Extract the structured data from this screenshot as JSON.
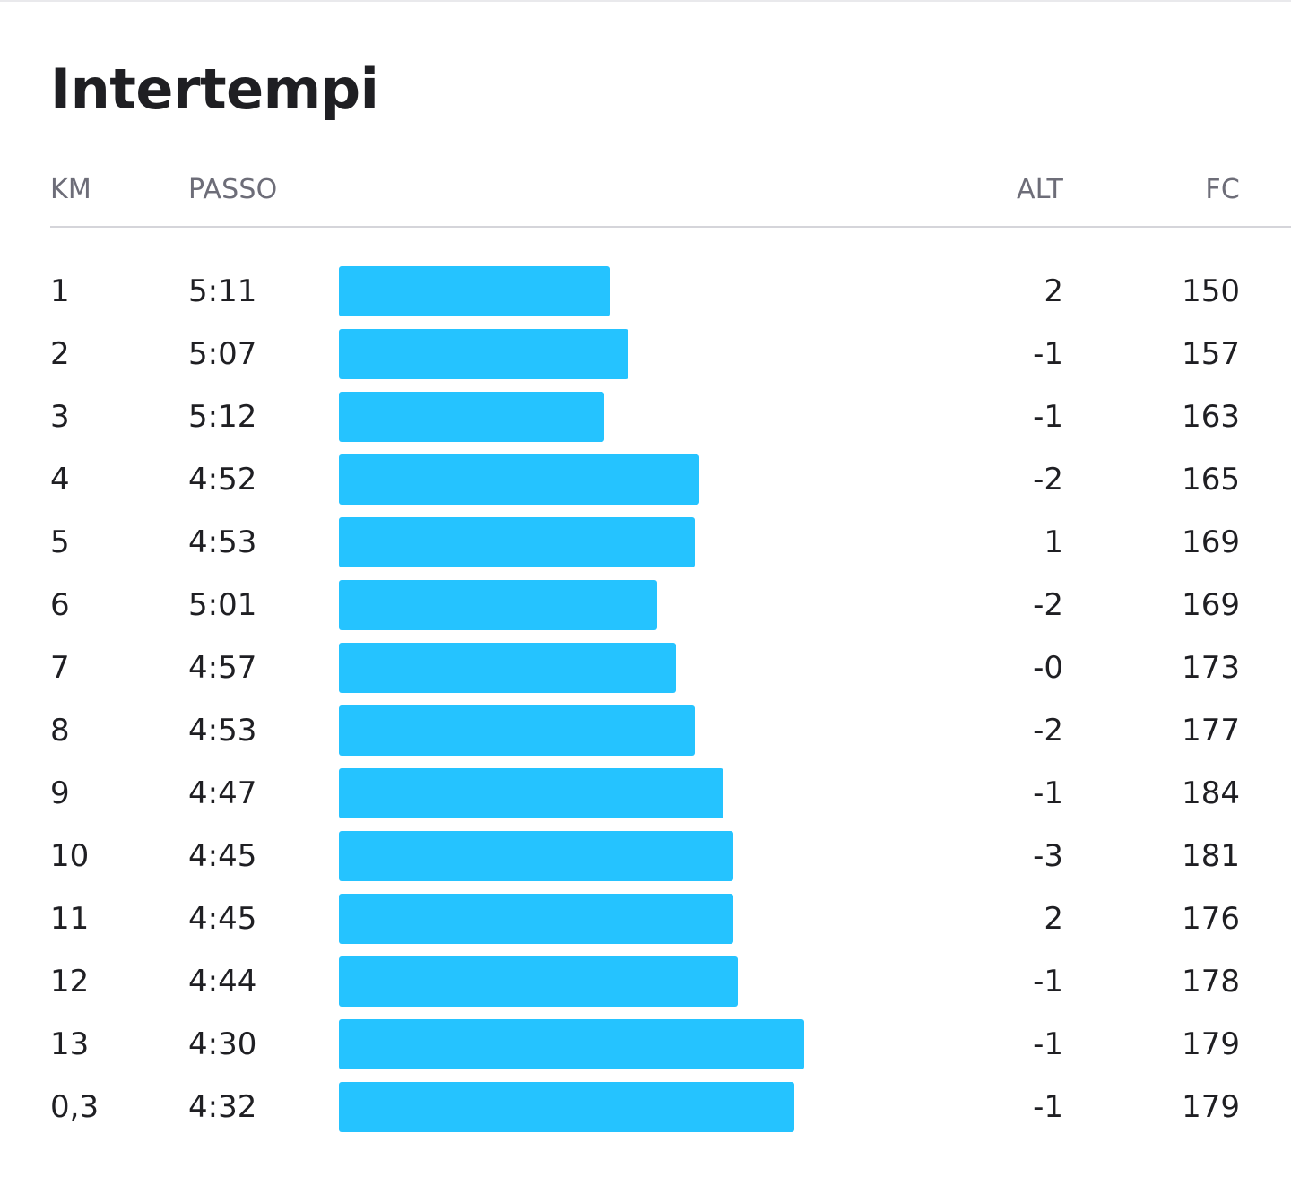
{
  "title": "Intertempi",
  "columns": {
    "km": "KM",
    "pace": "PASSO",
    "alt": "ALT",
    "hr": "FC"
  },
  "colors": {
    "bar": "#25c3ff",
    "header_text": "#6d6d78",
    "text": "#1f1f23"
  },
  "splits": [
    {
      "km": "1",
      "pace": "5:11",
      "alt": "2",
      "hr": "150"
    },
    {
      "km": "2",
      "pace": "5:07",
      "alt": "-1",
      "hr": "157"
    },
    {
      "km": "3",
      "pace": "5:12",
      "alt": "-1",
      "hr": "163"
    },
    {
      "km": "4",
      "pace": "4:52",
      "alt": "-2",
      "hr": "165"
    },
    {
      "km": "5",
      "pace": "4:53",
      "alt": "1",
      "hr": "169"
    },
    {
      "km": "6",
      "pace": "5:01",
      "alt": "-2",
      "hr": "169"
    },
    {
      "km": "7",
      "pace": "4:57",
      "alt": "-0",
      "hr": "173"
    },
    {
      "km": "8",
      "pace": "4:53",
      "alt": "-2",
      "hr": "177"
    },
    {
      "km": "9",
      "pace": "4:47",
      "alt": "-1",
      "hr": "184"
    },
    {
      "km": "10",
      "pace": "4:45",
      "alt": "-3",
      "hr": "181"
    },
    {
      "km": "11",
      "pace": "4:45",
      "alt": "2",
      "hr": "176"
    },
    {
      "km": "12",
      "pace": "4:44",
      "alt": "-1",
      "hr": "178"
    },
    {
      "km": "13",
      "pace": "4:30",
      "alt": "-1",
      "hr": "179"
    },
    {
      "km": "0,3",
      "pace": "4:32",
      "alt": "-1",
      "hr": "179"
    }
  ]
}
